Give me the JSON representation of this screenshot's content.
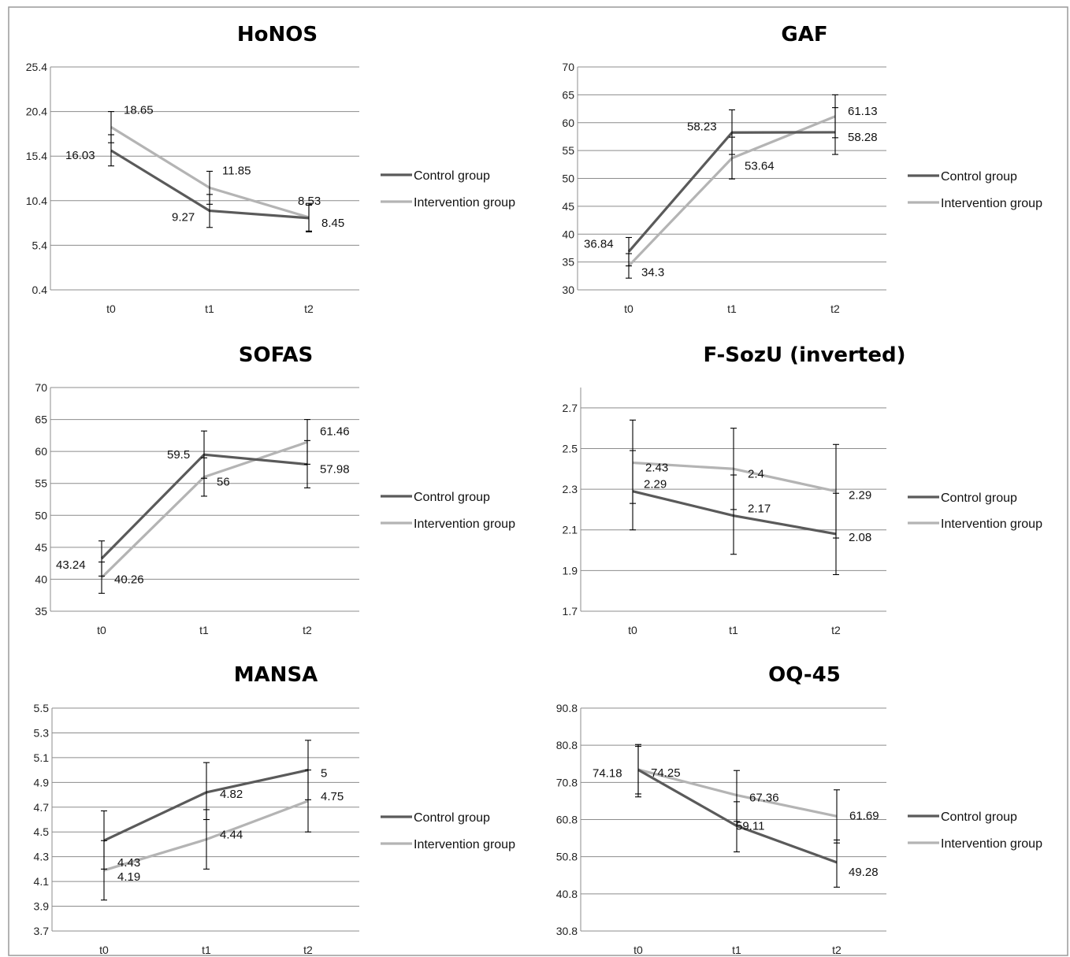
{
  "chart_data": [
    {
      "type": "line",
      "title": "HoNOS",
      "categories": [
        "t0",
        "t1",
        "t2"
      ],
      "yticks": [
        0.4,
        5.4,
        10.4,
        15.4,
        20.4,
        25.4
      ],
      "ytick_labels": [
        "0.4",
        "5.4",
        "10.4",
        "15.4",
        "20.4",
        "25.4"
      ],
      "ylim": [
        0.4,
        25.4
      ],
      "grid": true,
      "legend": "right",
      "series": [
        {
          "name": "Control group",
          "color": "#5a5a5a",
          "values": [
            16.03,
            9.27,
            8.45
          ],
          "labels": [
            "16.03",
            "9.27",
            "8.45"
          ],
          "error_low": [
            14.3,
            7.4,
            6.9
          ],
          "error_high": [
            17.8,
            11.1,
            9.9
          ]
        },
        {
          "name": "Intervention group",
          "color": "#b4b4b4",
          "values": [
            18.65,
            11.85,
            8.53
          ],
          "labels": [
            "18.65",
            "11.85",
            "8.53"
          ],
          "error_low": [
            16.9,
            10.0,
            7.0
          ],
          "error_high": [
            20.4,
            13.7,
            10.1
          ]
        }
      ]
    },
    {
      "type": "line",
      "title": "GAF",
      "categories": [
        "t0",
        "t1",
        "t2"
      ],
      "yticks": [
        30,
        35,
        40,
        45,
        50,
        55,
        60,
        65,
        70
      ],
      "ytick_labels": [
        "30",
        "35",
        "40",
        "45",
        "50",
        "55",
        "60",
        "65",
        "70"
      ],
      "ylim": [
        30,
        70
      ],
      "grid": true,
      "legend": "right",
      "series": [
        {
          "name": "Control group",
          "color": "#5a5a5a",
          "values": [
            36.84,
            58.23,
            58.28
          ],
          "labels": [
            "36.84",
            "58.23",
            "58.28"
          ],
          "error_low": [
            34.3,
            54.3,
            54.3
          ],
          "error_high": [
            39.4,
            62.3,
            62.7
          ]
        },
        {
          "name": "Intervention group",
          "color": "#b4b4b4",
          "values": [
            34.3,
            53.64,
            61.13
          ],
          "labels": [
            "34.3",
            "53.64",
            "61.13"
          ],
          "error_low": [
            32.1,
            49.9,
            57.3
          ],
          "error_high": [
            36.5,
            57.4,
            65.0
          ]
        }
      ]
    },
    {
      "type": "line",
      "title": "SOFAS",
      "categories": [
        "t0",
        "t1",
        "t2"
      ],
      "yticks": [
        35,
        40,
        45,
        50,
        55,
        60,
        65,
        70
      ],
      "ytick_labels": [
        "35",
        "40",
        "45",
        "50",
        "55",
        "60",
        "65",
        "70"
      ],
      "ylim": [
        35,
        70
      ],
      "grid": true,
      "legend": "right",
      "series": [
        {
          "name": "Control group",
          "color": "#5a5a5a",
          "values": [
            43.24,
            59.5,
            57.98
          ],
          "labels": [
            "43.24",
            "59.5",
            "57.98"
          ],
          "error_low": [
            40.5,
            55.8,
            54.3
          ],
          "error_high": [
            46.0,
            63.2,
            61.7
          ]
        },
        {
          "name": "Intervention group",
          "color": "#b4b4b4",
          "values": [
            40.26,
            56,
            61.46
          ],
          "labels": [
            "40.26",
            "56",
            "61.46"
          ],
          "error_low": [
            37.8,
            53.0,
            58.0
          ],
          "error_high": [
            42.7,
            59.0,
            65.0
          ]
        }
      ]
    },
    {
      "type": "line",
      "title": "F-SozU (inverted)",
      "categories": [
        "t0",
        "t1",
        "t2"
      ],
      "yticks": [
        1.7,
        1.9,
        2.1,
        2.3,
        2.5,
        2.7
      ],
      "ytick_labels": [
        "1.7",
        "1.9",
        "2.1",
        "2.3",
        "2.5",
        "2.7"
      ],
      "ylim": [
        1.7,
        2.8
      ],
      "grid": true,
      "legend": "right",
      "series": [
        {
          "name": "Control group",
          "color": "#5a5a5a",
          "values": [
            2.29,
            2.17,
            2.08
          ],
          "labels": [
            "2.29",
            "2.17",
            "2.08"
          ],
          "error_low": [
            2.1,
            1.98,
            1.88
          ],
          "error_high": [
            2.49,
            2.37,
            2.28
          ]
        },
        {
          "name": "Intervention group",
          "color": "#b4b4b4",
          "values": [
            2.43,
            2.4,
            2.29
          ],
          "labels": [
            "2.43",
            "2.4",
            "2.29"
          ],
          "error_low": [
            2.23,
            2.2,
            2.06
          ],
          "error_high": [
            2.64,
            2.6,
            2.52
          ]
        }
      ]
    },
    {
      "type": "line",
      "title": "MANSA",
      "categories": [
        "t0",
        "t1",
        "t2"
      ],
      "yticks": [
        3.7,
        3.9,
        4.1,
        4.3,
        4.5,
        4.7,
        4.9,
        5.1,
        5.3,
        5.5
      ],
      "ytick_labels": [
        "3.7",
        "3.9",
        "4.1",
        "4.3",
        "4.5",
        "4.7",
        "4.9",
        "5.1",
        "5.3",
        "5.5"
      ],
      "ylim": [
        3.7,
        5.5
      ],
      "grid": true,
      "legend": "right",
      "series": [
        {
          "name": "Control group",
          "color": "#5a5a5a",
          "values": [
            4.43,
            4.82,
            5
          ],
          "labels": [
            "4.43",
            "4.82",
            "5"
          ],
          "error_low": [
            4.2,
            4.6,
            4.76
          ],
          "error_high": [
            4.67,
            5.06,
            5.24
          ]
        },
        {
          "name": "Intervention group",
          "color": "#b4b4b4",
          "values": [
            4.19,
            4.44,
            4.75
          ],
          "labels": [
            "4.19",
            "4.44",
            "4.75"
          ],
          "error_low": [
            3.95,
            4.2,
            4.5
          ],
          "error_high": [
            4.43,
            4.68,
            5.0
          ]
        }
      ]
    },
    {
      "type": "line",
      "title": "OQ-45",
      "categories": [
        "t0",
        "t1",
        "t2"
      ],
      "yticks": [
        30.8,
        40.8,
        50.8,
        60.8,
        70.8,
        80.8,
        90.8
      ],
      "ytick_labels": [
        "30.8",
        "40.8",
        "50.8",
        "60.8",
        "70.8",
        "80.8",
        "90.8"
      ],
      "ylim": [
        30.8,
        90.8
      ],
      "grid": true,
      "legend": "right",
      "series": [
        {
          "name": "Control group",
          "color": "#5a5a5a",
          "values": [
            74.18,
            59.11,
            49.28
          ],
          "labels": [
            "74.18",
            "59.11",
            "49.28"
          ],
          "error_low": [
            66.9,
            52.1,
            42.6
          ],
          "error_high": [
            80.5,
            65.6,
            55.3
          ]
        },
        {
          "name": "Intervention group",
          "color": "#b4b4b4",
          "values": [
            74.25,
            67.36,
            61.69
          ],
          "labels": [
            "74.25",
            "67.36",
            "61.69"
          ],
          "error_low": [
            67.7,
            60.3,
            54.5
          ],
          "error_high": [
            81.0,
            74.0,
            68.8
          ]
        }
      ]
    }
  ]
}
